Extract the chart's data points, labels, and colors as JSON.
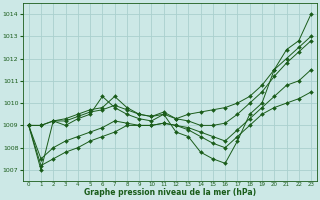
{
  "title": "Graphe pression niveau de la mer (hPa)",
  "bg_color": "#cce8e6",
  "grid_color": "#aad0ce",
  "line_color": "#1a5c1a",
  "ylim": [
    1006.5,
    1014.5
  ],
  "yticks": [
    1007,
    1008,
    1009,
    1010,
    1011,
    1012,
    1013,
    1014
  ],
  "x_labels": [
    "0",
    "1",
    "2",
    "3",
    "4",
    "5",
    "6",
    "7",
    "8",
    "9",
    "10",
    "11",
    "12",
    "13",
    "14",
    "15",
    "16",
    "17",
    "18",
    "19",
    "20",
    "21",
    "22",
    "23"
  ],
  "y_main": [
    1009.0,
    1007.0,
    1009.2,
    1009.0,
    1009.3,
    1009.5,
    1010.3,
    1009.8,
    1009.5,
    1009.3,
    1009.2,
    1009.5,
    1008.7,
    1008.5,
    1007.8,
    1007.5,
    1007.3,
    1008.3,
    1009.5,
    1010.0,
    1011.5,
    1012.4,
    1012.8,
    1014.0
  ],
  "y_line2": [
    1009.0,
    1009.0,
    1009.2,
    1009.3,
    1009.5,
    1009.7,
    1009.8,
    1010.3,
    1009.8,
    1009.5,
    1009.4,
    1009.5,
    1009.3,
    1009.5,
    1009.6,
    1009.7,
    1009.8,
    1010.0,
    1010.3,
    1010.8,
    1011.5,
    1012.0,
    1012.5,
    1013.0
  ],
  "y_line3": [
    1009.0,
    1007.2,
    1007.5,
    1007.8,
    1008.0,
    1008.3,
    1008.5,
    1008.7,
    1009.0,
    1009.0,
    1009.0,
    1009.1,
    1009.0,
    1008.8,
    1008.5,
    1008.2,
    1008.0,
    1008.5,
    1009.0,
    1009.5,
    1009.8,
    1010.0,
    1010.2,
    1010.5
  ],
  "y_line4": [
    1009.0,
    1009.0,
    1009.2,
    1009.2,
    1009.4,
    1009.6,
    1009.7,
    1009.9,
    1009.7,
    1009.5,
    1009.4,
    1009.6,
    1009.3,
    1009.2,
    1009.0,
    1009.0,
    1009.1,
    1009.5,
    1010.0,
    1010.5,
    1011.2,
    1011.8,
    1012.3,
    1012.8
  ],
  "y_line5": [
    1009.0,
    1007.5,
    1008.0,
    1008.3,
    1008.5,
    1008.7,
    1008.9,
    1009.2,
    1009.1,
    1009.0,
    1009.0,
    1009.1,
    1009.0,
    1008.9,
    1008.7,
    1008.5,
    1008.3,
    1008.8,
    1009.3,
    1009.8,
    1010.3,
    1010.8,
    1011.0,
    1011.5
  ]
}
